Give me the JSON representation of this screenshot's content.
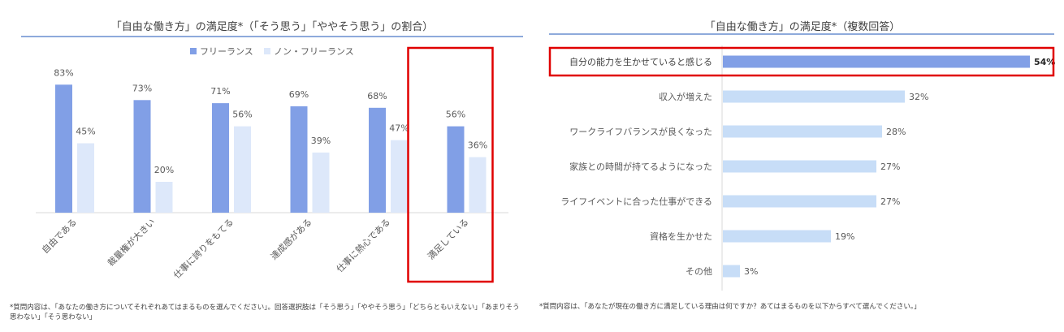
{
  "colors": {
    "freelance": "#819fe6",
    "non_freelance": "#dde8fa",
    "right_bar": "#c7ddf7",
    "right_bar_highlight": "#819fe6",
    "highlight_box": "#e00000",
    "rule": "#8eaadb"
  },
  "left": {
    "title": "「自由な働き方」の満足度*（「そう思う」「ややそう思う」の割合）",
    "note": "*質問内容は、「あなたの働き方についてそれぞれあてはまるものを選んでください」。回答選択肢は「そう思う」「ややそう思う」「どちらともいえない」「あまりそう思わない」「そう思わない」",
    "highlighted_category": "満足している"
  },
  "right": {
    "title": "「自由な働き方」の満足度*（複数回答）",
    "note": "*質問内容は、「あなたが現在の働き方に満足している理由は何ですか？あてはまるものを以下からすべて選んでください。」",
    "highlighted_category": "自分の能力を生かせていると感じる"
  },
  "chart_data": [
    {
      "type": "bar",
      "title": "「自由な働き方」の満足度*（「そう思う」「ややそう思う」の割合）",
      "categories": [
        "自由である",
        "裁量権が大きい",
        "仕事に誇りをもてる",
        "達成感がある",
        "仕事に熱心である",
        "満足している"
      ],
      "series": [
        {
          "name": "フリーランス",
          "values": [
            83,
            73,
            71,
            69,
            68,
            56
          ]
        },
        {
          "name": "ノン・フリーランス",
          "values": [
            45,
            20,
            56,
            39,
            47,
            36
          ]
        }
      ],
      "unit": "%",
      "ylim": [
        0,
        100
      ],
      "legend": "top-center",
      "grid": false
    },
    {
      "type": "bar",
      "orientation": "horizontal",
      "title": "「自由な働き方」の満足度*（複数回答）",
      "categories": [
        "自分の能力を生かせていると感じる",
        "収入が増えた",
        "ワークライフバランスが良くなった",
        "家族との時間が持てるようになった",
        "ライフイベントに合った仕事ができる",
        "資格を生かせた",
        "その他"
      ],
      "values": [
        54,
        32,
        28,
        27,
        27,
        19,
        3
      ],
      "unit": "%",
      "xlim": [
        0,
        60
      ],
      "grid": false
    }
  ]
}
